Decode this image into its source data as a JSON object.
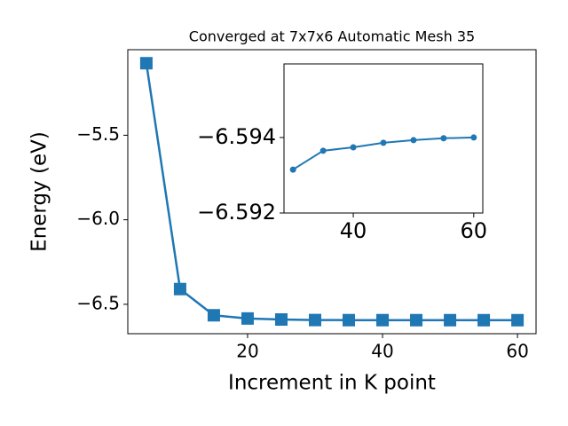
{
  "chart_data": [
    {
      "type": "line",
      "title": "Converged at 7x7x6 Automatic Mesh 35",
      "x_label": "Increment in K point",
      "y_label": "Energy (eV)",
      "x": [
        5,
        10,
        15,
        20,
        25,
        30,
        35,
        40,
        45,
        50,
        55,
        60
      ],
      "series": [
        {
          "color": "#1f77b4",
          "marker": "square",
          "values": [
            -5.074,
            -6.41,
            -6.565,
            -6.584,
            -6.59,
            -6.5932,
            -6.5937,
            -6.5937,
            -6.5939,
            -6.5939,
            -6.594,
            -6.594
          ]
        }
      ],
      "xlim": [
        2.25,
        62.75
      ],
      "ylim": [
        -6.674,
        -4.994
      ],
      "xticks": [
        20,
        40,
        60
      ],
      "yticks": [
        {
          "value": -5.5,
          "label": "−5.5"
        },
        {
          "value": -6.0,
          "label": "−6.0"
        },
        {
          "value": -6.5,
          "label": "−6.5"
        }
      ]
    },
    {
      "type": "line",
      "x": [
        30,
        35,
        40,
        45,
        50,
        55,
        60
      ],
      "series": [
        {
          "color": "#1f77b4",
          "marker": "circle",
          "values": [
            -6.59315,
            -6.59365,
            -6.59374,
            -6.59386,
            -6.59393,
            -6.59398,
            -6.594
          ]
        }
      ],
      "xlim": [
        28.5,
        61.5
      ],
      "ylim": [
        -6.592,
        -6.59595
      ],
      "xticks": [
        40,
        60
      ],
      "yticks": [
        {
          "value": -6.594,
          "label": "−6.594"
        },
        {
          "value": -6.592,
          "label": "−6.592"
        }
      ]
    }
  ]
}
